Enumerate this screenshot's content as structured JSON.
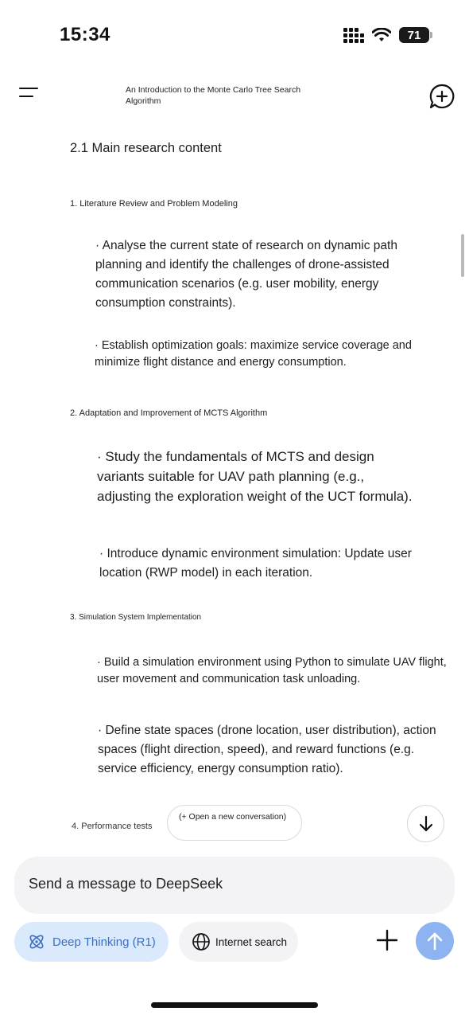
{
  "status_bar": {
    "time": "15:34",
    "battery": "71",
    "icons": [
      "signal-icon",
      "wifi-icon",
      "battery-icon"
    ]
  },
  "header": {
    "title": "An Introduction to the Monte Carlo Tree Search Algorithm",
    "menu_icon": "menu-icon",
    "new_chat_icon": "new-chat-icon"
  },
  "content": {
    "section_title": "2.1 Main research content",
    "sections": [
      {
        "heading": "1. Literature Review and Problem Modeling",
        "bullets": [
          "· Analyse the current state of research on dynamic path planning and identify the challenges of drone-assisted communication scenarios (e.g. user mobility, energy consumption constraints).",
          "· Establish optimization goals: maximize service coverage and minimize flight distance and energy consumption."
        ]
      },
      {
        "heading": "2. Adaptation and Improvement of MCTS Algorithm",
        "bullets": [
          "· Study the fundamentals of MCTS and design variants suitable for UAV path planning (e.g., adjusting the exploration weight of the UCT formula).",
          "· Introduce dynamic environment simulation: Update user location (RWP model) in each iteration."
        ]
      },
      {
        "heading": "3. Simulation System Implementation",
        "bullets": [
          "· Build a simulation environment using Python to simulate UAV flight, user movement and communication task unloading.",
          "· Define state spaces (drone location, user distribution), action spaces (flight direction, speed), and reward functions (e.g. service efficiency, energy consumption ratio)."
        ]
      },
      {
        "heading": "4. Performance tests",
        "bullets": []
      }
    ]
  },
  "floating": {
    "open_conversation": "(+ Open a new conversation)"
  },
  "composer": {
    "placeholder": "Send a message to DeepSeek",
    "deep_thinking": "Deep Thinking (R1)",
    "internet_search": "Internet search"
  },
  "colors": {
    "accent": "#3a6fc4",
    "accent_bg": "#dbe9fc",
    "send_btn": "#8db4f0",
    "input_bg": "#f3f3f5"
  }
}
